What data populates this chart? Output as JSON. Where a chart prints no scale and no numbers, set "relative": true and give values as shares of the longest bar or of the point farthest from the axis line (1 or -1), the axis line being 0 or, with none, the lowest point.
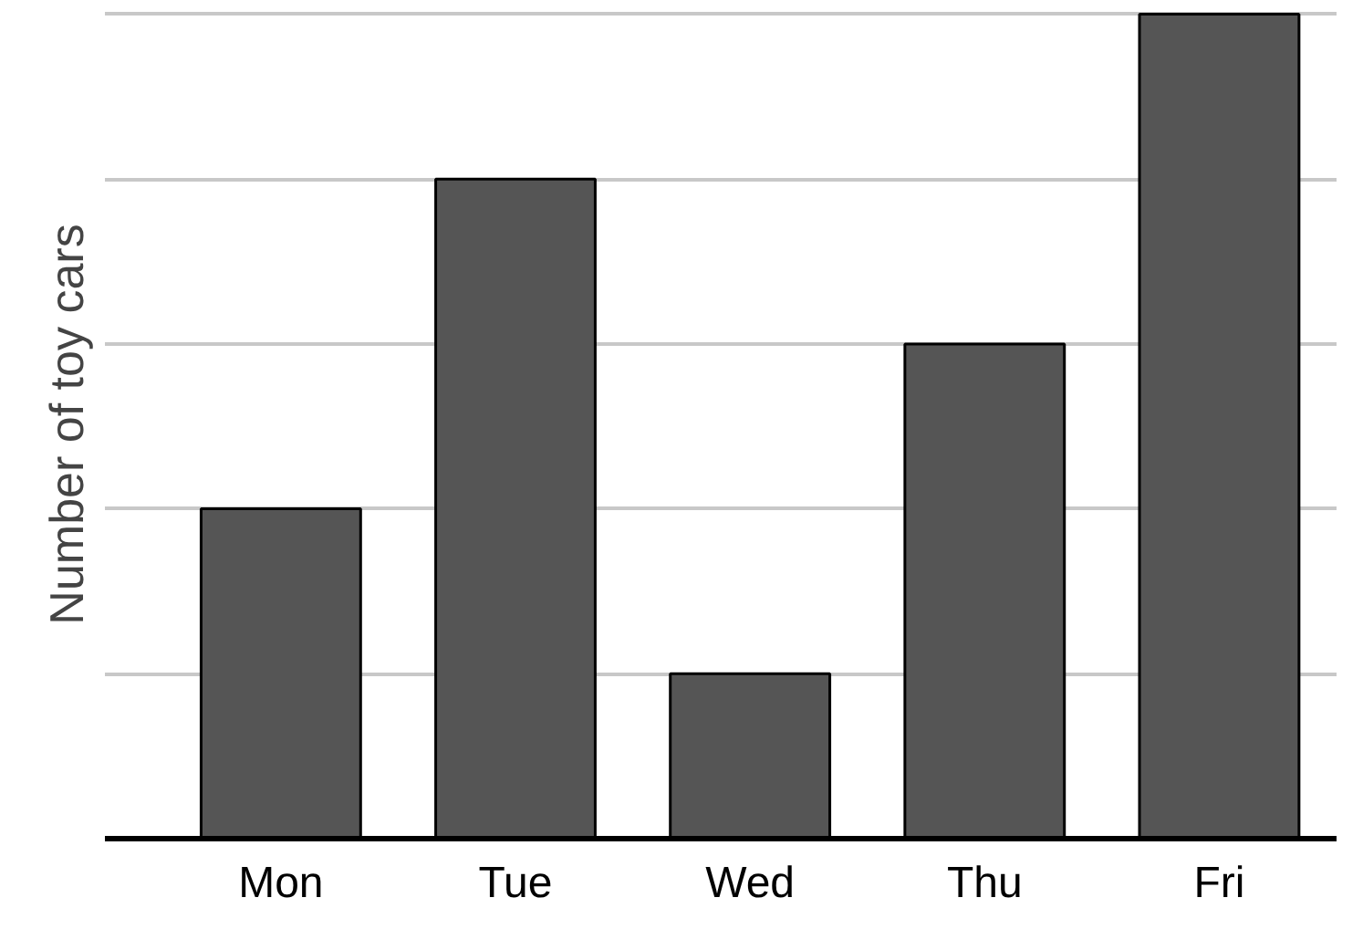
{
  "chart_data": {
    "type": "bar",
    "ylabel": "Number of toy cars",
    "categories": [
      "Mon",
      "Tue",
      "Wed",
      "Thu",
      "Fri"
    ],
    "values": [
      0.4,
      0.8,
      0.2,
      0.6,
      1.0
    ],
    "color": "#555555",
    "relative": true,
    "grid": "y"
  }
}
